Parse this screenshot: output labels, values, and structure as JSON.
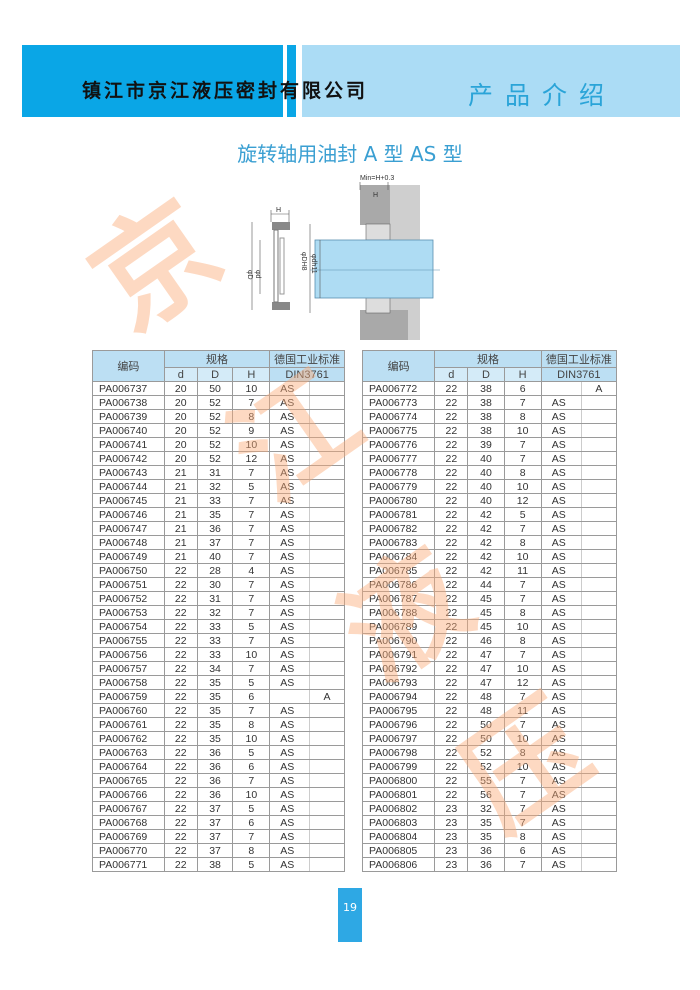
{
  "header": {
    "company": "镇江市京江液压密封有限公司",
    "section": "产品介绍",
    "colors": {
      "dark_blue": "#0aa6e6",
      "light_blue": "#abdcf5"
    }
  },
  "title": "旋转轴用油封 A 型   AS 型",
  "watermark": "京江液压",
  "diagram": {
    "min_label": "Min=H+0.3",
    "h_label": "H",
    "D_label": "φD",
    "d_label": "φd",
    "DH8_label": "φDH8",
    "dh11_label": "φdh11"
  },
  "table_headers": {
    "code": "编码",
    "spec": "规格",
    "d": "d",
    "D": "D",
    "H": "H",
    "standard": "德国工业标准",
    "din": "DIN3761"
  },
  "tables": [
    {
      "rows": [
        [
          "PA006737",
          "20",
          "50",
          "10",
          "AS",
          ""
        ],
        [
          "PA006738",
          "20",
          "52",
          "7",
          "AS",
          ""
        ],
        [
          "PA006739",
          "20",
          "52",
          "8",
          "AS",
          ""
        ],
        [
          "PA006740",
          "20",
          "52",
          "9",
          "AS",
          ""
        ],
        [
          "PA006741",
          "20",
          "52",
          "10",
          "AS",
          ""
        ],
        [
          "PA006742",
          "20",
          "52",
          "12",
          "AS",
          ""
        ],
        [
          "PA006743",
          "21",
          "31",
          "7",
          "AS",
          ""
        ],
        [
          "PA006744",
          "21",
          "32",
          "5",
          "AS",
          ""
        ],
        [
          "PA006745",
          "21",
          "33",
          "7",
          "AS",
          ""
        ],
        [
          "PA006746",
          "21",
          "35",
          "7",
          "AS",
          ""
        ],
        [
          "PA006747",
          "21",
          "36",
          "7",
          "AS",
          ""
        ],
        [
          "PA006748",
          "21",
          "37",
          "7",
          "AS",
          ""
        ],
        [
          "PA006749",
          "21",
          "40",
          "7",
          "AS",
          ""
        ],
        [
          "PA006750",
          "22",
          "28",
          "4",
          "AS",
          ""
        ],
        [
          "PA006751",
          "22",
          "30",
          "7",
          "AS",
          ""
        ],
        [
          "PA006752",
          "22",
          "31",
          "7",
          "AS",
          ""
        ],
        [
          "PA006753",
          "22",
          "32",
          "7",
          "AS",
          ""
        ],
        [
          "PA006754",
          "22",
          "33",
          "5",
          "AS",
          ""
        ],
        [
          "PA006755",
          "22",
          "33",
          "7",
          "AS",
          ""
        ],
        [
          "PA006756",
          "22",
          "33",
          "10",
          "AS",
          ""
        ],
        [
          "PA006757",
          "22",
          "34",
          "7",
          "AS",
          ""
        ],
        [
          "PA006758",
          "22",
          "35",
          "5",
          "AS",
          ""
        ],
        [
          "PA006759",
          "22",
          "35",
          "6",
          "",
          "A"
        ],
        [
          "PA006760",
          "22",
          "35",
          "7",
          "AS",
          ""
        ],
        [
          "PA006761",
          "22",
          "35",
          "8",
          "AS",
          ""
        ],
        [
          "PA006762",
          "22",
          "35",
          "10",
          "AS",
          ""
        ],
        [
          "PA006763",
          "22",
          "36",
          "5",
          "AS",
          ""
        ],
        [
          "PA006764",
          "22",
          "36",
          "6",
          "AS",
          ""
        ],
        [
          "PA006765",
          "22",
          "36",
          "7",
          "AS",
          ""
        ],
        [
          "PA006766",
          "22",
          "36",
          "10",
          "AS",
          ""
        ],
        [
          "PA006767",
          "22",
          "37",
          "5",
          "AS",
          ""
        ],
        [
          "PA006768",
          "22",
          "37",
          "6",
          "AS",
          ""
        ],
        [
          "PA006769",
          "22",
          "37",
          "7",
          "AS",
          ""
        ],
        [
          "PA006770",
          "22",
          "37",
          "8",
          "AS",
          ""
        ],
        [
          "PA006771",
          "22",
          "38",
          "5",
          "AS",
          ""
        ]
      ]
    },
    {
      "rows": [
        [
          "PA006772",
          "22",
          "38",
          "6",
          "",
          "A"
        ],
        [
          "PA006773",
          "22",
          "38",
          "7",
          "AS",
          ""
        ],
        [
          "PA006774",
          "22",
          "38",
          "8",
          "AS",
          ""
        ],
        [
          "PA006775",
          "22",
          "38",
          "10",
          "AS",
          ""
        ],
        [
          "PA006776",
          "22",
          "39",
          "7",
          "AS",
          ""
        ],
        [
          "PA006777",
          "22",
          "40",
          "7",
          "AS",
          ""
        ],
        [
          "PA006778",
          "22",
          "40",
          "8",
          "AS",
          ""
        ],
        [
          "PA006779",
          "22",
          "40",
          "10",
          "AS",
          ""
        ],
        [
          "PA006780",
          "22",
          "40",
          "12",
          "AS",
          ""
        ],
        [
          "PA006781",
          "22",
          "42",
          "5",
          "AS",
          ""
        ],
        [
          "PA006782",
          "22",
          "42",
          "7",
          "AS",
          ""
        ],
        [
          "PA006783",
          "22",
          "42",
          "8",
          "AS",
          ""
        ],
        [
          "PA006784",
          "22",
          "42",
          "10",
          "AS",
          ""
        ],
        [
          "PA006785",
          "22",
          "42",
          "11",
          "AS",
          ""
        ],
        [
          "PA006786",
          "22",
          "44",
          "7",
          "AS",
          ""
        ],
        [
          "PA006787",
          "22",
          "45",
          "7",
          "AS",
          ""
        ],
        [
          "PA006788",
          "22",
          "45",
          "8",
          "AS",
          ""
        ],
        [
          "PA006789",
          "22",
          "45",
          "10",
          "AS",
          ""
        ],
        [
          "PA006790",
          "22",
          "46",
          "8",
          "AS",
          ""
        ],
        [
          "PA006791",
          "22",
          "47",
          "7",
          "AS",
          ""
        ],
        [
          "PA006792",
          "22",
          "47",
          "10",
          "AS",
          ""
        ],
        [
          "PA006793",
          "22",
          "47",
          "12",
          "AS",
          ""
        ],
        [
          "PA006794",
          "22",
          "48",
          "7",
          "AS",
          ""
        ],
        [
          "PA006795",
          "22",
          "48",
          "11",
          "AS",
          ""
        ],
        [
          "PA006796",
          "22",
          "50",
          "7",
          "AS",
          ""
        ],
        [
          "PA006797",
          "22",
          "50",
          "10",
          "AS",
          ""
        ],
        [
          "PA006798",
          "22",
          "52",
          "8",
          "AS",
          ""
        ],
        [
          "PA006799",
          "22",
          "52",
          "10",
          "AS",
          ""
        ],
        [
          "PA006800",
          "22",
          "55",
          "7",
          "AS",
          ""
        ],
        [
          "PA006801",
          "22",
          "56",
          "7",
          "AS",
          ""
        ],
        [
          "PA006802",
          "23",
          "32",
          "7",
          "AS",
          ""
        ],
        [
          "PA006803",
          "23",
          "35",
          "7",
          "AS",
          ""
        ],
        [
          "PA006804",
          "23",
          "35",
          "8",
          "AS",
          ""
        ],
        [
          "PA006805",
          "23",
          "36",
          "6",
          "AS",
          ""
        ],
        [
          "PA006806",
          "23",
          "36",
          "7",
          "AS",
          ""
        ]
      ]
    }
  ],
  "page_number": "19"
}
